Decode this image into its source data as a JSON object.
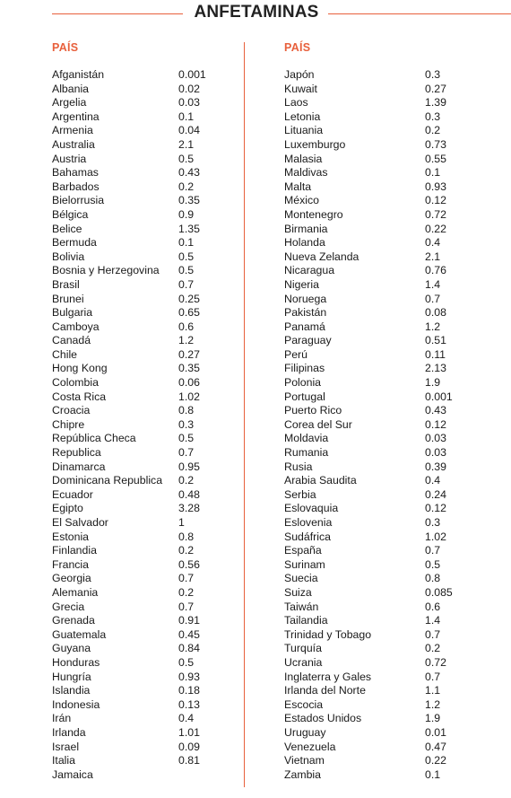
{
  "title": "ANFETAMINAS",
  "colors": {
    "accent": "#e8603c",
    "text": "#1a1a1a"
  },
  "chart_data": {
    "type": "table",
    "columns": [
      {
        "header": "PAÍS",
        "rows": [
          [
            "Afganistán",
            "0.001"
          ],
          [
            "Albania",
            "0.02"
          ],
          [
            "Argelia",
            "0.03"
          ],
          [
            "Argentina",
            "0.1"
          ],
          [
            "Armenia",
            "0.04"
          ],
          [
            "Australia",
            "2.1"
          ],
          [
            "Austria",
            "0.5"
          ],
          [
            "Bahamas",
            "0.43"
          ],
          [
            "Barbados",
            "0.2"
          ],
          [
            "Bielorrusia",
            "0.35"
          ],
          [
            "Bélgica",
            "0.9"
          ],
          [
            "Belice",
            "1.35"
          ],
          [
            "Bermuda",
            "0.1"
          ],
          [
            "Bolivia",
            "0.5"
          ],
          [
            "Bosnia y Herzegovina",
            "0.5"
          ],
          [
            "Brasil",
            "0.7"
          ],
          [
            "Brunei",
            "0.25"
          ],
          [
            "Bulgaria",
            "0.65"
          ],
          [
            "Camboya",
            "0.6"
          ],
          [
            "Canadá",
            "1.2"
          ],
          [
            "Chile",
            "0.27"
          ],
          [
            "Hong Kong",
            "0.35"
          ],
          [
            "Colombia",
            "0.06"
          ],
          [
            "Costa Rica",
            "1.02"
          ],
          [
            "Croacia",
            "0.8"
          ],
          [
            "Chipre",
            "0.3"
          ],
          [
            "República Checa",
            "0.5"
          ],
          [
            "Republica",
            "0.7"
          ],
          [
            "Dinamarca",
            "0.95"
          ],
          [
            "Dominicana Republica",
            "0.2"
          ],
          [
            "Ecuador",
            "0.48"
          ],
          [
            "Egipto",
            "3.28"
          ],
          [
            "El Salvador",
            "1"
          ],
          [
            "Estonia",
            "0.8"
          ],
          [
            "Finlandia",
            "0.2"
          ],
          [
            "Francia",
            "0.56"
          ],
          [
            "Georgia",
            "0.7"
          ],
          [
            "Alemania",
            "0.2"
          ],
          [
            "Grecia",
            "0.7"
          ],
          [
            "Grenada",
            "0.91"
          ],
          [
            "Guatemala",
            "0.45"
          ],
          [
            "Guyana",
            "0.84"
          ],
          [
            "Honduras",
            "0.5"
          ],
          [
            "Hungría",
            "0.93"
          ],
          [
            "Islandia",
            "0.18"
          ],
          [
            "Indonesia",
            "0.13"
          ],
          [
            "Irán",
            "0.4"
          ],
          [
            "Irlanda",
            "1.01"
          ],
          [
            "Israel",
            "0.09"
          ],
          [
            "Italia",
            "0.81"
          ],
          [
            "Jamaica",
            ""
          ]
        ]
      },
      {
        "header": "PAÍS",
        "rows": [
          [
            "Japón",
            "0.3"
          ],
          [
            "Kuwait",
            "0.27"
          ],
          [
            "Laos",
            "1.39"
          ],
          [
            "Letonia",
            "0.3"
          ],
          [
            "Lituania",
            "0.2"
          ],
          [
            "Luxemburgo",
            "0.73"
          ],
          [
            "Malasia",
            "0.55"
          ],
          [
            "Maldivas",
            "0.1"
          ],
          [
            "Malta",
            "0.93"
          ],
          [
            "México",
            "0.12"
          ],
          [
            "Montenegro",
            "0.72"
          ],
          [
            "Birmania",
            "0.22"
          ],
          [
            "Holanda",
            "0.4"
          ],
          [
            "Nueva Zelanda",
            "2.1"
          ],
          [
            "Nicaragua",
            "0.76"
          ],
          [
            "Nigeria",
            "1.4"
          ],
          [
            "Noruega",
            "0.7"
          ],
          [
            "Pakistán",
            "0.08"
          ],
          [
            "Panamá",
            "1.2"
          ],
          [
            "Paraguay",
            "0.51"
          ],
          [
            "Perú",
            "0.11"
          ],
          [
            "Filipinas",
            "2.13"
          ],
          [
            "Polonia",
            "1.9"
          ],
          [
            "Portugal",
            "0.001"
          ],
          [
            "Puerto Rico",
            "0.43"
          ],
          [
            "Corea del Sur",
            "0.12"
          ],
          [
            "Moldavia",
            "0.03"
          ],
          [
            "Rumania",
            "0.03"
          ],
          [
            "Rusia",
            "0.39"
          ],
          [
            "Arabia Saudita",
            "0.4"
          ],
          [
            "Serbia",
            "0.24"
          ],
          [
            "Eslovaquia",
            "0.12"
          ],
          [
            "Eslovenia",
            "0.3"
          ],
          [
            "Sudáfrica",
            "1.02"
          ],
          [
            "España",
            "0.7"
          ],
          [
            "Surinam",
            "0.5"
          ],
          [
            "Suecia",
            "0.8"
          ],
          [
            "Suiza",
            "0.085"
          ],
          [
            "Taiwán",
            "0.6"
          ],
          [
            "Tailandia",
            "1.4"
          ],
          [
            "Trinidad y Tobago",
            "0.7"
          ],
          [
            "Turquía",
            "0.2"
          ],
          [
            "Ucrania",
            "0.72"
          ],
          [
            "Inglaterra y Gales",
            "0.7"
          ],
          [
            "Irlanda del Norte",
            "1.1"
          ],
          [
            "Escocia",
            "1.2"
          ],
          [
            "Estados Unidos",
            "1.9"
          ],
          [
            "Uruguay",
            "0.01"
          ],
          [
            "Venezuela",
            "0.47"
          ],
          [
            "Vietnam",
            "0.22"
          ],
          [
            "Zambia",
            "0.1"
          ]
        ]
      }
    ]
  }
}
